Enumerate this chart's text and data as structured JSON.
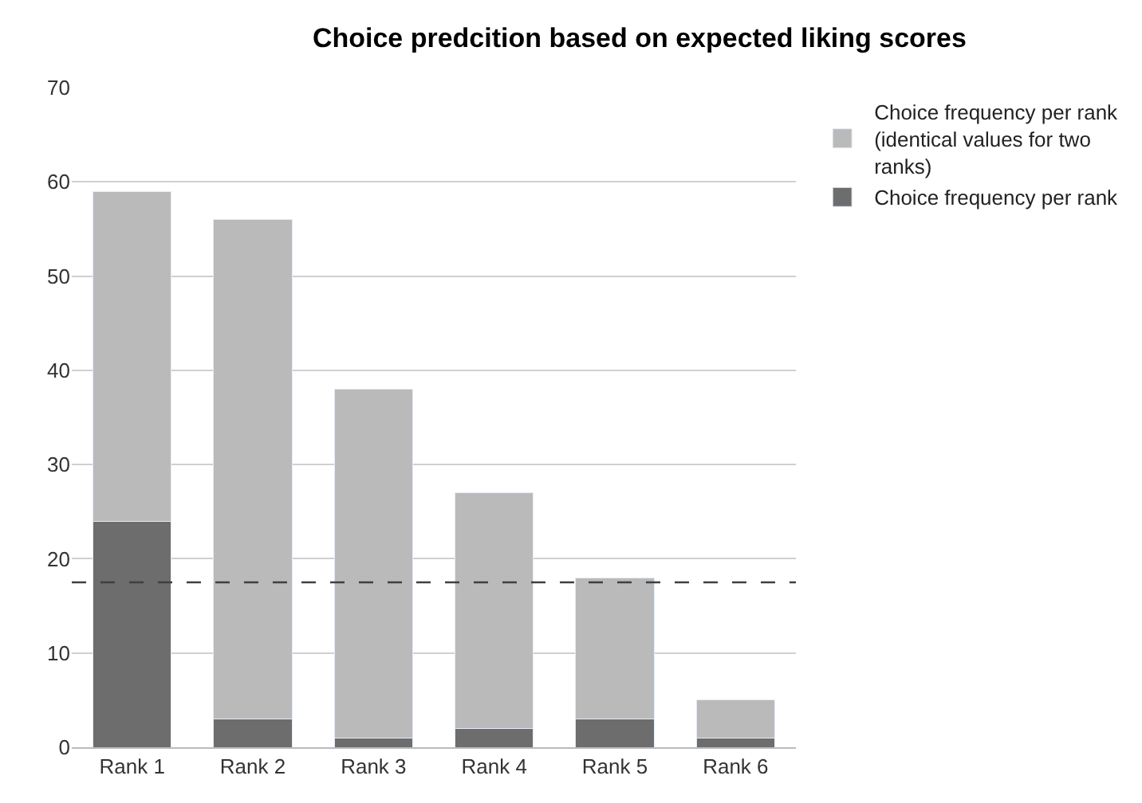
{
  "chart_data": {
    "type": "bar",
    "title": "Choice predcition based on expected liking scores",
    "categories": [
      "Rank 1",
      "Rank 2",
      "Rank 3",
      "Rank 4",
      "Rank 5",
      "Rank 6"
    ],
    "stacked": true,
    "series": [
      {
        "name": "Choice frequency per rank",
        "color": "#6d6d6d",
        "values": [
          24,
          3,
          1,
          2,
          3,
          1
        ]
      },
      {
        "name": "Choice frequency per rank (identical values for two ranks)",
        "color": "#bababa",
        "values": [
          35,
          53,
          37,
          25,
          15,
          4
        ]
      }
    ],
    "ylim": [
      0,
      70
    ],
    "yticks": [
      0,
      10,
      20,
      30,
      40,
      50,
      60,
      70
    ],
    "grid": "y",
    "legend": "top right",
    "ref_lines": [
      {
        "axis": "y",
        "value": 17.5,
        "color": "#404040",
        "line_style": "dashed"
      }
    ]
  }
}
